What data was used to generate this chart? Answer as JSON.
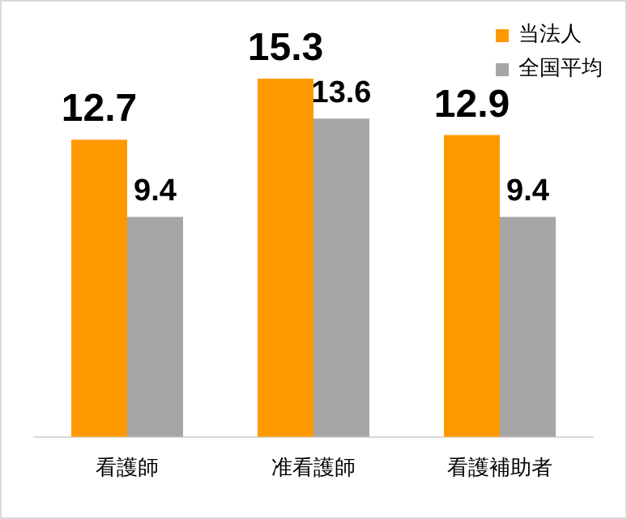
{
  "chart_data": {
    "type": "bar",
    "categories": [
      "看護師",
      "准看護師",
      "看護補助者"
    ],
    "series": [
      {
        "name": "当法人",
        "color": "#ff9900",
        "values": [
          12.7,
          15.3,
          12.9
        ]
      },
      {
        "name": "全国平均",
        "color": "#a6a6a6",
        "values": [
          9.4,
          13.6,
          9.4
        ]
      }
    ],
    "data_labels": true,
    "legend": "top right",
    "grid": false
  }
}
